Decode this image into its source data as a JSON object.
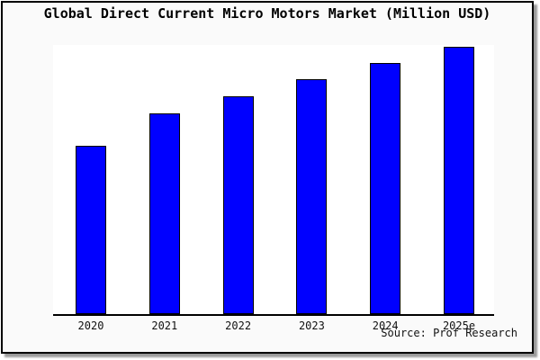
{
  "title": "Global Direct Current Micro Motors Market (Million USD)",
  "source": "Source: Prof Research",
  "colors": {
    "bar_fill": "#0000ff",
    "bar_border": "#000000",
    "figure_background": "#fafafa",
    "plot_background": "#ffffff",
    "axis_line": "#000000",
    "frame_border": "#000000",
    "shadow": "#9a9a9a"
  },
  "chart_data": {
    "type": "bar",
    "title": "Global Direct Current Micro Motors Market (Million USD)",
    "categories": [
      "2020",
      "2021",
      "2022",
      "2023",
      "2024",
      "2025e"
    ],
    "values": [
      63,
      75,
      81.5,
      88,
      94,
      100
    ],
    "value_scale": "relative bar height, % of tallest bar (2025e); chart shows no y-axis or numeric labels",
    "xlabel": "",
    "ylabel": "",
    "ylim": [
      0,
      100
    ],
    "grid": false,
    "legend_position": "none",
    "y_axis_visible": false,
    "annotation": "Source: Prof Research"
  }
}
